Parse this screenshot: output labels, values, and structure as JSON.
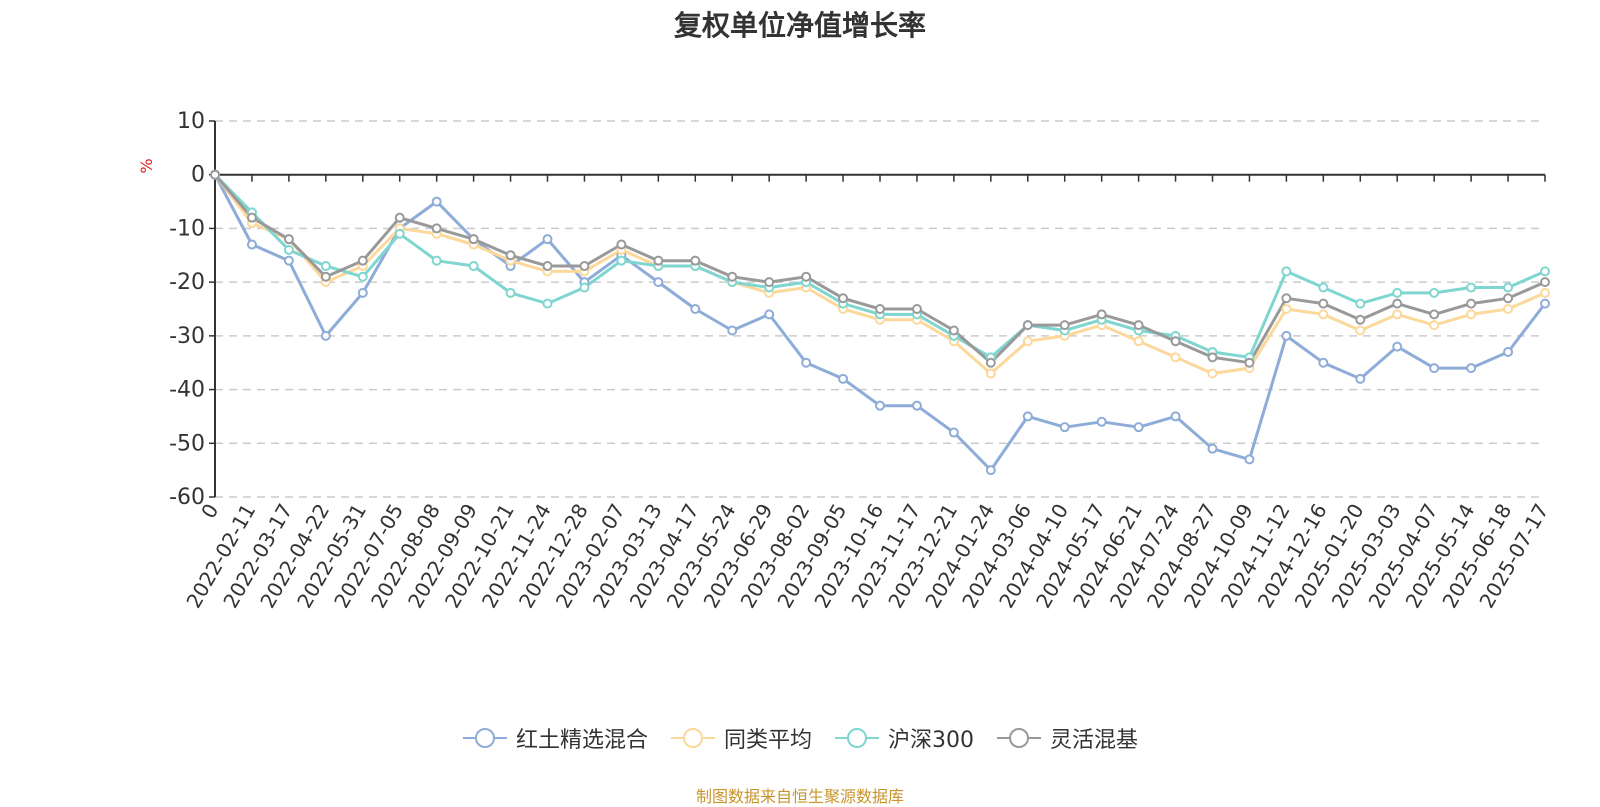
{
  "chart_data": {
    "type": "line",
    "title": "复权单位净值增长率",
    "ylabel": "%",
    "ylim": [
      -60,
      10
    ],
    "yticks": [
      10,
      0,
      -10,
      -20,
      -30,
      -40,
      -50,
      -60
    ],
    "grid": true,
    "legend_position": "bottom-center",
    "x_tick_labels": [
      "0",
      "2022-02-11",
      "2022-03-17",
      "2022-04-22",
      "2022-05-31",
      "2022-07-05",
      "2022-08-08",
      "2022-09-09",
      "2022-10-21",
      "2022-11-24",
      "2022-12-28",
      "2023-02-07",
      "2023-03-13",
      "2023-04-17",
      "2023-05-24",
      "2023-06-29",
      "2023-08-02",
      "2023-09-05",
      "2023-10-16",
      "2023-11-17",
      "2023-12-21",
      "2024-01-24",
      "2024-03-06",
      "2024-04-10",
      "2024-05-17",
      "2024-06-21",
      "2024-07-24",
      "2024-08-27",
      "2024-10-09",
      "2024-11-12",
      "2024-12-16",
      "2025-01-20",
      "2025-03-03",
      "2025-04-07",
      "2025-05-14",
      "2025-06-18",
      "2025-07-17"
    ],
    "x": [
      "0",
      "2022-02-11",
      "2022-03-17",
      "2022-04-22",
      "2022-05-31",
      "2022-07-05",
      "2022-08-08",
      "2022-09-09",
      "2022-10-21",
      "2022-11-24",
      "2022-12-28",
      "2023-02-07",
      "2023-03-13",
      "2023-04-17",
      "2023-05-24",
      "2023-06-29",
      "2023-08-02",
      "2023-09-05",
      "2023-10-16",
      "2023-11-17",
      "2023-12-21",
      "2024-01-24",
      "2024-03-06",
      "2024-04-10",
      "2024-05-17",
      "2024-06-21",
      "2024-07-24",
      "2024-08-27",
      "2024-10-09",
      "2024-11-12",
      "2024-12-16",
      "2025-01-20",
      "2025-03-03",
      "2025-04-07",
      "2025-05-14",
      "2025-06-18",
      "2025-07-17"
    ],
    "series": [
      {
        "name": "红土精选混合",
        "color": "#8eacd8",
        "values": [
          0,
          -13,
          -16,
          -30,
          -22,
          -10,
          -5,
          -12,
          -17,
          -12,
          -20,
          -15,
          -20,
          -25,
          -29,
          -26,
          -35,
          -38,
          -43,
          -43,
          -48,
          -55,
          -45,
          -47,
          -46,
          -47,
          -45,
          -51,
          -53,
          -30,
          -35,
          -38,
          -32,
          -36,
          -36,
          -33,
          -24
        ]
      },
      {
        "name": "同类平均",
        "color": "#fcd89a",
        "values": [
          0,
          -9,
          -12,
          -20,
          -17,
          -10,
          -11,
          -13,
          -16,
          -18,
          -18,
          -14,
          -17,
          -17,
          -20,
          -22,
          -21,
          -25,
          -27,
          -27,
          -31,
          -37,
          -31,
          -30,
          -28,
          -31,
          -34,
          -37,
          -36,
          -25,
          -26,
          -29,
          -26,
          -28,
          -26,
          -25,
          -22
        ]
      },
      {
        "name": "沪深300",
        "color": "#7fd6d0",
        "values": [
          0,
          -7,
          -14,
          -17,
          -19,
          -11,
          -16,
          -17,
          -22,
          -24,
          -21,
          -16,
          -17,
          -17,
          -20,
          -21,
          -20,
          -24,
          -26,
          -26,
          -30,
          -34,
          -28,
          -29,
          -27,
          -29,
          -30,
          -33,
          -34,
          -18,
          -21,
          -24,
          -22,
          -22,
          -21,
          -21,
          -18
        ]
      },
      {
        "name": "灵活混基",
        "color": "#999999",
        "values": [
          0,
          -8,
          -12,
          -19,
          -16,
          -8,
          -10,
          -12,
          -15,
          -17,
          -17,
          -13,
          -16,
          -16,
          -19,
          -20,
          -19,
          -23,
          -25,
          -25,
          -29,
          -35,
          -28,
          -28,
          -26,
          -28,
          -31,
          -34,
          -35,
          -23,
          -24,
          -27,
          -24,
          -26,
          -24,
          -23,
          -20
        ]
      }
    ]
  },
  "source_note": "制图数据来自恒生聚源数据库"
}
